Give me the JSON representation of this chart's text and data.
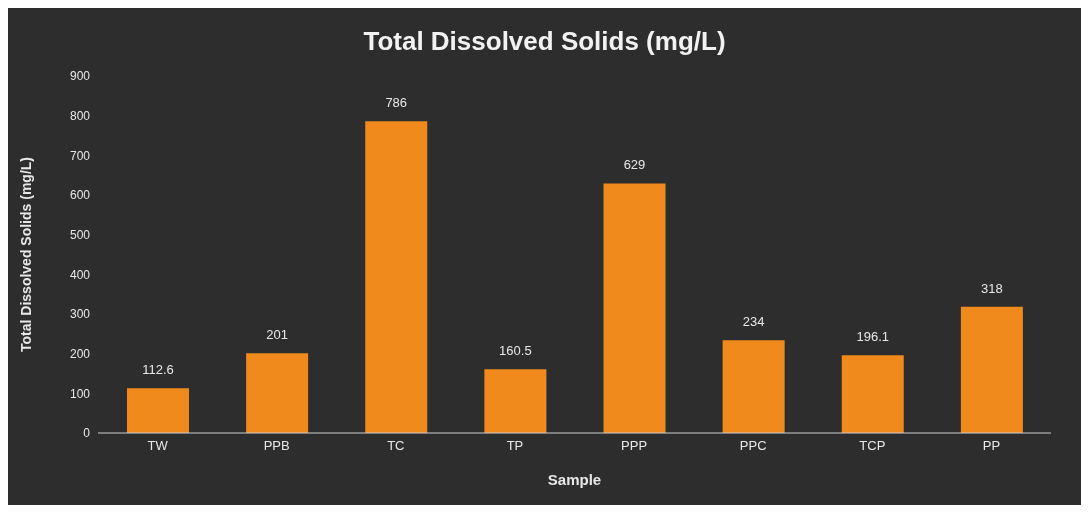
{
  "chart_data": {
    "type": "bar",
    "title": "Total Dissolved Solids (mg/L)",
    "xlabel": "Sample",
    "ylabel": "Total Dissolved Solids (mg/L)",
    "categories": [
      "TW",
      "PPB",
      "TC",
      "TP",
      "PPP",
      "PPC",
      "TCP",
      "PP"
    ],
    "values": [
      112.6,
      201,
      786,
      160.5,
      629,
      234,
      196.1,
      318
    ],
    "color": "#f08a1c",
    "ylim": [
      0,
      900
    ],
    "yticks": [
      0,
      100,
      200,
      300,
      400,
      500,
      600,
      700,
      800,
      900
    ],
    "data_labels": true,
    "grid": false,
    "legend": false
  }
}
